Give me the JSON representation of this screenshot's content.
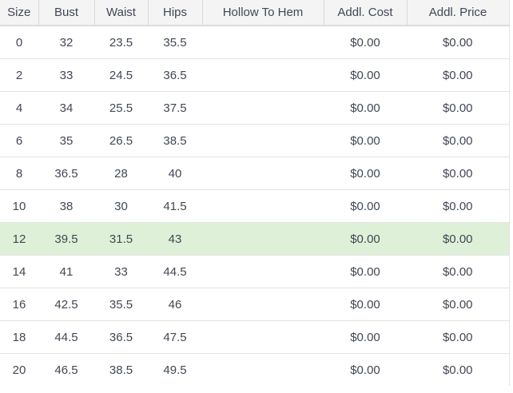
{
  "table": {
    "columns": [
      {
        "key": "size",
        "label": "Size"
      },
      {
        "key": "bust",
        "label": "Bust"
      },
      {
        "key": "waist",
        "label": "Waist"
      },
      {
        "key": "hips",
        "label": "Hips"
      },
      {
        "key": "hollow-to-hem",
        "label": "Hollow To Hem"
      },
      {
        "key": "addl-cost",
        "label": "Addl. Cost"
      },
      {
        "key": "addl-price",
        "label": "Addl. Price"
      }
    ],
    "rows": [
      {
        "cells": [
          "0",
          "32",
          "23.5",
          "35.5",
          "",
          "$0.00",
          "$0.00"
        ]
      },
      {
        "cells": [
          "2",
          "33",
          "24.5",
          "36.5",
          "",
          "$0.00",
          "$0.00"
        ]
      },
      {
        "cells": [
          "4",
          "34",
          "25.5",
          "37.5",
          "",
          "$0.00",
          "$0.00"
        ]
      },
      {
        "cells": [
          "6",
          "35",
          "26.5",
          "38.5",
          "",
          "$0.00",
          "$0.00"
        ]
      },
      {
        "cells": [
          "8",
          "36.5",
          "28",
          "40",
          "",
          "$0.00",
          "$0.00"
        ]
      },
      {
        "cells": [
          "10",
          "38",
          "30",
          "41.5",
          "",
          "$0.00",
          "$0.00"
        ]
      },
      {
        "cells": [
          "12",
          "39.5",
          "31.5",
          "43",
          "",
          "$0.00",
          "$0.00"
        ]
      },
      {
        "cells": [
          "14",
          "41",
          "33",
          "44.5",
          "",
          "$0.00",
          "$0.00"
        ]
      },
      {
        "cells": [
          "16",
          "42.5",
          "35.5",
          "46",
          "",
          "$0.00",
          "$0.00"
        ]
      },
      {
        "cells": [
          "18",
          "44.5",
          "36.5",
          "47.5",
          "",
          "$0.00",
          "$0.00"
        ]
      },
      {
        "cells": [
          "20",
          "46.5",
          "38.5",
          "49.5",
          "",
          "$0.00",
          "$0.00"
        ]
      }
    ],
    "highlighted_row_index": 6,
    "colors": {
      "header_bg": "#f4f4f4",
      "highlight_bg": "#dff0d8",
      "border": "#e3e3e3",
      "header_divider": "#d9d9d9",
      "text": "#414753"
    }
  }
}
